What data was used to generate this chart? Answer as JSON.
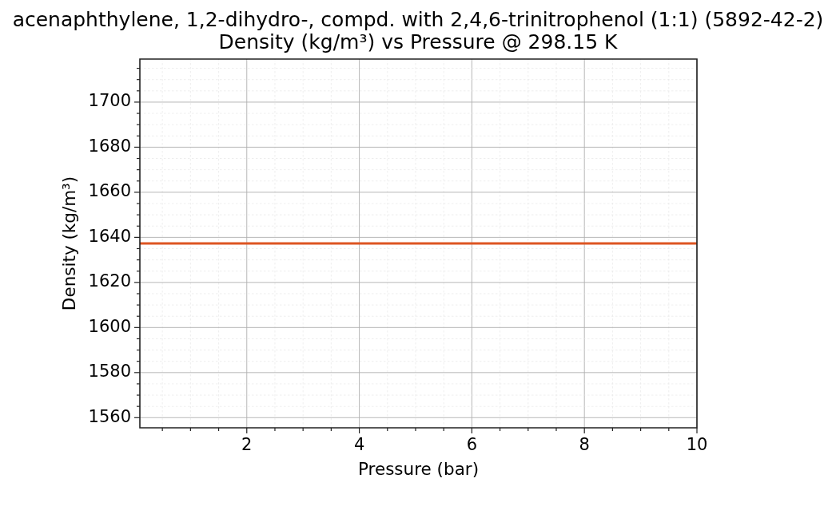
{
  "chart_data": {
    "type": "line",
    "title": "acenaphthylene, 1,2-dihydro-, compd. with 2,4,6-trinitrophenol (1:1) (5892-42-2)",
    "subtitle": "Density (kg/m³) vs Pressure @ 298.15 K",
    "xlabel": "Pressure (bar)",
    "ylabel": "Density (kg/m³)",
    "x": [
      0.1,
      10
    ],
    "series": [
      {
        "color": "#dd5522",
        "values": [
          1637.3,
          1637.3
        ]
      }
    ],
    "xlim": [
      0.1,
      10
    ],
    "ylim": [
      1555.5,
      1719.1
    ],
    "xticks": [
      {
        "value": 0.5,
        "label": null
      },
      {
        "value": 1,
        "label": null
      },
      {
        "value": 1.5,
        "label": null
      },
      2,
      {
        "value": 2.5,
        "label": null
      },
      {
        "value": 3,
        "label": null
      },
      {
        "value": 3.5,
        "label": null
      },
      4,
      {
        "value": 4.5,
        "label": null
      },
      {
        "value": 5,
        "label": null
      },
      {
        "value": 5.5,
        "label": null
      },
      6,
      {
        "value": 6.5,
        "label": null
      },
      {
        "value": 7,
        "label": null
      },
      {
        "value": 7.5,
        "label": null
      },
      8,
      {
        "value": 8.5,
        "label": null
      },
      {
        "value": 9,
        "label": null
      },
      {
        "value": 9.5,
        "label": null
      },
      10
    ],
    "yticks": [
      1560,
      {
        "value": 1565,
        "label": null
      },
      {
        "value": 1570,
        "label": null
      },
      {
        "value": 1575,
        "label": null
      },
      1580,
      {
        "value": 1585,
        "label": null
      },
      {
        "value": 1590,
        "label": null
      },
      {
        "value": 1595,
        "label": null
      },
      1600,
      {
        "value": 1605,
        "label": null
      },
      {
        "value": 1610,
        "label": null
      },
      {
        "value": 1615,
        "label": null
      },
      1620,
      {
        "value": 1625,
        "label": null
      },
      {
        "value": 1630,
        "label": null
      },
      {
        "value": 1635,
        "label": null
      },
      1640,
      {
        "value": 1645,
        "label": null
      },
      {
        "value": 1650,
        "label": null
      },
      {
        "value": 1655,
        "label": null
      },
      1660,
      {
        "value": 1665,
        "label": null
      },
      {
        "value": 1670,
        "label": null
      },
      {
        "value": 1675,
        "label": null
      },
      1680,
      {
        "value": 1685,
        "label": null
      },
      {
        "value": 1690,
        "label": null
      },
      {
        "value": 1695,
        "label": null
      },
      1700,
      {
        "value": 1705,
        "label": null
      },
      {
        "value": 1710,
        "label": null
      },
      {
        "value": 1715,
        "label": null
      }
    ],
    "grid": true,
    "legend": false
  }
}
